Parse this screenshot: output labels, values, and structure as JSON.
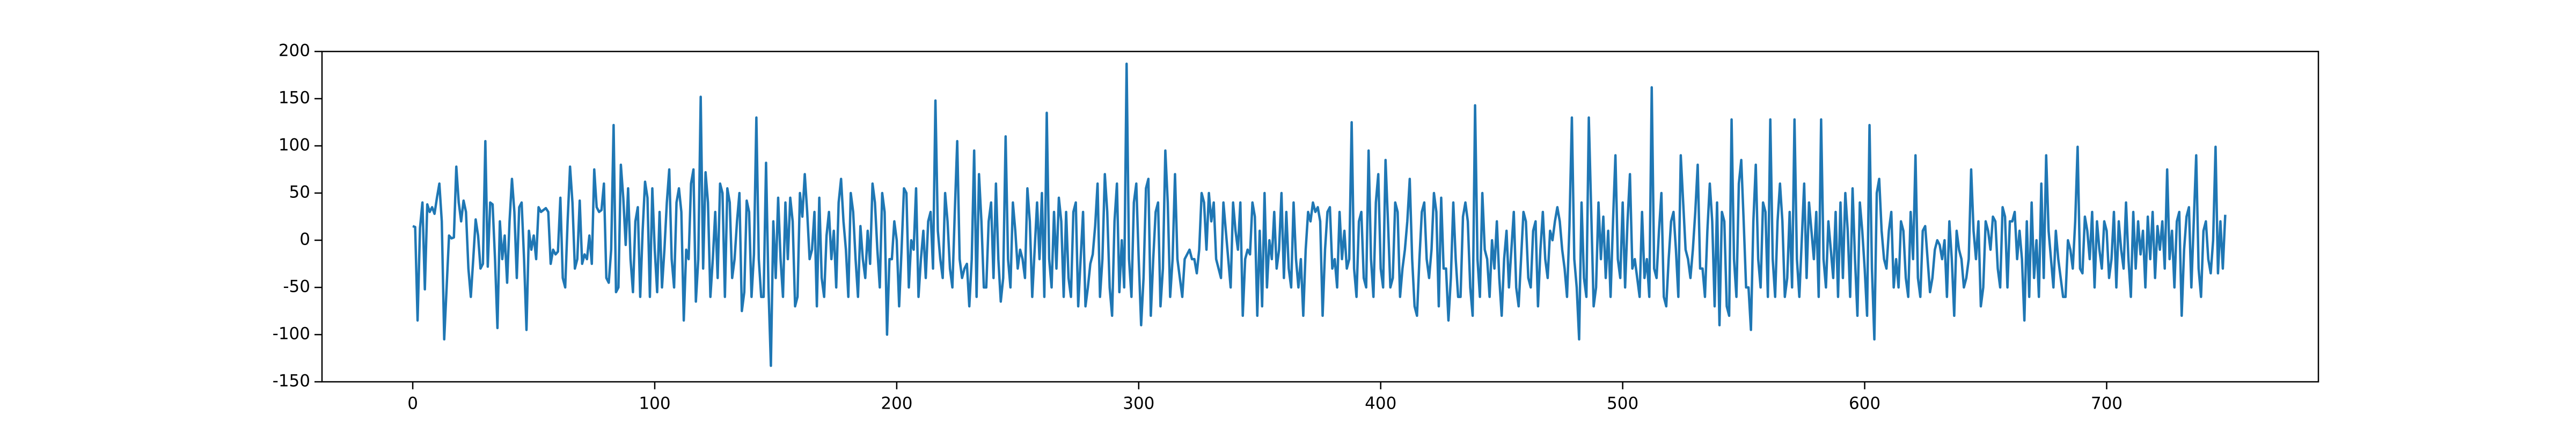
{
  "chart_data": {
    "type": "line",
    "color": "#1f77b4",
    "xlim": [
      -37.5,
      787.5
    ],
    "xticks": [
      0,
      100,
      200,
      300,
      400,
      500,
      600,
      700
    ],
    "ylim": [
      -150,
      200
    ],
    "yticks": [
      -150,
      -100,
      -50,
      0,
      50,
      100,
      150,
      200
    ],
    "values": [
      15,
      14,
      -85,
      13,
      40,
      -52,
      38,
      30,
      35,
      28,
      45,
      60,
      20,
      -105,
      -50,
      5,
      2,
      3,
      78,
      40,
      20,
      42,
      30,
      -30,
      -60,
      -20,
      22,
      5,
      -30,
      -25,
      105,
      -28,
      40,
      38,
      -20,
      -93,
      20,
      -20,
      5,
      -45,
      20,
      65,
      30,
      -40,
      35,
      40,
      -20,
      -95,
      10,
      -10,
      5,
      -20,
      35,
      30,
      32,
      34,
      30,
      -25,
      -10,
      -15,
      -12,
      45,
      -40,
      -50,
      20,
      78,
      40,
      -30,
      -20,
      42,
      -25,
      -15,
      -20,
      5,
      -25,
      75,
      35,
      30,
      32,
      60,
      -40,
      -45,
      -10,
      122,
      -55,
      -50,
      80,
      45,
      -5,
      55,
      -20,
      -55,
      20,
      35,
      -60,
      10,
      62,
      45,
      -60,
      55,
      -10,
      -55,
      30,
      -50,
      -10,
      40,
      75,
      -20,
      -50,
      40,
      55,
      30,
      -85,
      -10,
      -20,
      60,
      75,
      -65,
      -20,
      152,
      -30,
      72,
      40,
      -60,
      -20,
      30,
      -40,
      60,
      50,
      -60,
      55,
      40,
      -40,
      -20,
      20,
      50,
      -75,
      -55,
      42,
      30,
      -60,
      -15,
      130,
      -20,
      -60,
      -60,
      82,
      -50,
      -133,
      20,
      -40,
      45,
      -20,
      -60,
      40,
      -20,
      45,
      20,
      -70,
      -60,
      50,
      25,
      70,
      30,
      -20,
      -10,
      30,
      -70,
      45,
      -40,
      -60,
      5,
      30,
      -20,
      10,
      -50,
      40,
      65,
      20,
      -10,
      -60,
      50,
      30,
      -20,
      -60,
      15,
      -20,
      -40,
      10,
      -25,
      60,
      40,
      -10,
      -50,
      50,
      30,
      -100,
      -20,
      -20,
      20,
      0,
      -70,
      -10,
      55,
      50,
      -50,
      0,
      -10,
      55,
      -60,
      -20,
      10,
      -40,
      20,
      30,
      -30,
      148,
      10,
      -20,
      -40,
      50,
      20,
      -30,
      -50,
      30,
      105,
      -20,
      -40,
      -30,
      -25,
      -70,
      -20,
      95,
      -60,
      70,
      20,
      -50,
      -50,
      20,
      40,
      -40,
      60,
      -20,
      -65,
      -40,
      110,
      -20,
      -50,
      40,
      10,
      -30,
      -10,
      -20,
      -40,
      55,
      20,
      -60,
      -10,
      40,
      -20,
      50,
      -60,
      135,
      -20,
      -50,
      30,
      -30,
      45,
      20,
      -60,
      30,
      -40,
      -60,
      30,
      40,
      -70,
      -20,
      30,
      -70,
      -50,
      -25,
      -15,
      15,
      60,
      -60,
      -20,
      70,
      30,
      -50,
      -80,
      20,
      60,
      -55,
      0,
      -50,
      187,
      -20,
      -60,
      40,
      60,
      -20,
      -90,
      -40,
      55,
      65,
      -80,
      -20,
      30,
      40,
      -70,
      -30,
      95,
      40,
      -60,
      -20,
      70,
      -20,
      -40,
      -60,
      -20,
      -15,
      -10,
      -20,
      -20,
      -35,
      -10,
      50,
      40,
      -10,
      50,
      20,
      40,
      -20,
      -30,
      -40,
      40,
      10,
      -20,
      -50,
      40,
      10,
      -10,
      40,
      -80,
      -20,
      -10,
      -15,
      40,
      25,
      -80,
      10,
      -70,
      50,
      -50,
      0,
      -20,
      30,
      -30,
      -10,
      50,
      -40,
      30,
      -30,
      -50,
      40,
      -20,
      -50,
      -20,
      -80,
      -10,
      30,
      20,
      40,
      30,
      35,
      20,
      -80,
      -10,
      30,
      35,
      -30,
      -20,
      -50,
      30,
      -20,
      10,
      -30,
      -20,
      125,
      -30,
      -60,
      20,
      30,
      -40,
      -50,
      95,
      -20,
      -60,
      40,
      70,
      -30,
      -50,
      85,
      20,
      -50,
      -40,
      40,
      30,
      -60,
      -30,
      -10,
      20,
      65,
      -20,
      -70,
      -80,
      -20,
      30,
      40,
      -20,
      -40,
      -10,
      50,
      30,
      -70,
      45,
      -30,
      -30,
      -85,
      -40,
      40,
      -20,
      -60,
      -60,
      25,
      40,
      20,
      -50,
      -80,
      143,
      -20,
      -60,
      50,
      -10,
      -20,
      -60,
      0,
      -30,
      20,
      -40,
      -80,
      -20,
      10,
      -50,
      -10,
      30,
      -50,
      -70,
      -20,
      30,
      20,
      -40,
      -50,
      10,
      20,
      -70,
      -10,
      30,
      -20,
      -40,
      10,
      0,
      20,
      35,
      20,
      -10,
      -30,
      -60,
      15,
      130,
      -20,
      -50,
      -105,
      40,
      -40,
      -60,
      130,
      30,
      -70,
      -50,
      40,
      -20,
      25,
      -40,
      10,
      -60,
      20,
      90,
      -20,
      -40,
      40,
      -50,
      20,
      70,
      -30,
      -20,
      -40,
      -60,
      30,
      -40,
      -20,
      -60,
      162,
      -30,
      -40,
      10,
      50,
      -60,
      -70,
      -20,
      20,
      30,
      -10,
      -60,
      90,
      40,
      -10,
      -20,
      -40,
      -10,
      30,
      80,
      -30,
      -30,
      -60,
      10,
      60,
      20,
      -70,
      40,
      -90,
      30,
      20,
      -70,
      -80,
      128,
      -20,
      -60,
      60,
      85,
      20,
      -50,
      -50,
      -95,
      20,
      80,
      -20,
      -50,
      40,
      30,
      -60,
      128,
      -20,
      -60,
      20,
      60,
      20,
      -60,
      -40,
      30,
      -50,
      128,
      -20,
      -60,
      0,
      60,
      -40,
      40,
      10,
      -20,
      30,
      -60,
      128,
      -20,
      -50,
      20,
      -10,
      -40,
      30,
      -60,
      40,
      -40,
      50,
      10,
      -60,
      55,
      -20,
      -80,
      40,
      10,
      -30,
      -80,
      122,
      -30,
      -105,
      50,
      65,
      10,
      -20,
      -30,
      10,
      30,
      -50,
      -20,
      -50,
      20,
      10,
      -40,
      -60,
      30,
      -20,
      90,
      -40,
      -60,
      10,
      15,
      -20,
      -55,
      -40,
      -10,
      0,
      -5,
      -20,
      0,
      -60,
      20,
      -20,
      -80,
      10,
      -10,
      -20,
      -50,
      -40,
      -20,
      75,
      10,
      -20,
      20,
      -70,
      -50,
      20,
      10,
      -10,
      25,
      20,
      -30,
      -50,
      35,
      25,
      -50,
      20,
      20,
      30,
      -20,
      10,
      -20,
      -85,
      20,
      -60,
      40,
      -40,
      0,
      -60,
      60,
      -40,
      90,
      10,
      -20,
      -50,
      10,
      -20,
      -40,
      -60,
      -60,
      0,
      -10,
      -30,
      20,
      99,
      -30,
      -35,
      25,
      10,
      -20,
      30,
      -50,
      20,
      -10,
      -30,
      20,
      10,
      -40,
      -20,
      30,
      -50,
      20,
      -10,
      -30,
      40,
      -20,
      -60,
      30,
      -30,
      20,
      -15,
      10,
      -50,
      25,
      -20,
      30,
      -40,
      15,
      -10,
      20,
      -30,
      75,
      -20,
      10,
      -50,
      20,
      30,
      -80,
      -10,
      25,
      35,
      -50,
      20,
      90,
      -30,
      -60,
      10,
      20,
      -20,
      -35,
      0,
      99,
      -35,
      20,
      -30,
      27
    ]
  }
}
